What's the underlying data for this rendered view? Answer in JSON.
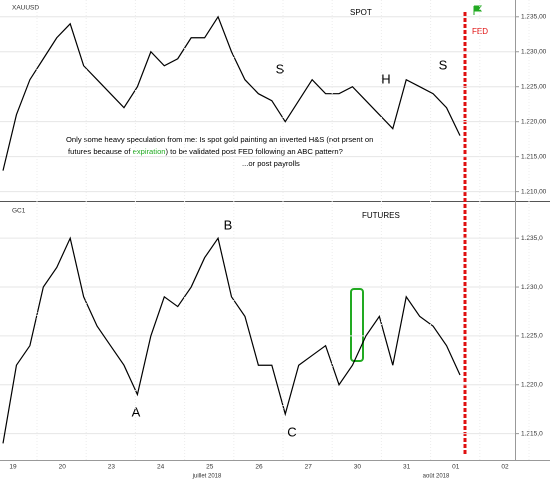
{
  "chart_data": [
    {
      "type": "line",
      "symbol": "XAUUSD",
      "title": "SPOT",
      "color": "#000000",
      "ylim": [
        1208.8,
        1237.4
      ],
      "yticks": [
        {
          "value": 1210,
          "label": "1.210,00"
        },
        {
          "value": 1215,
          "label": "1.215,00"
        },
        {
          "value": 1220,
          "label": "1.220,00"
        },
        {
          "value": 1225,
          "label": "1.225,00"
        },
        {
          "value": 1230,
          "label": "1.230,00"
        },
        {
          "value": 1235,
          "label": "1.235,00"
        }
      ],
      "values": [
        1213,
        1221,
        1226,
        1229,
        1232,
        1234,
        1228,
        1226,
        1224,
        1222,
        1225,
        1230,
        1228,
        1229,
        1232,
        1232,
        1235,
        1230,
        1226,
        1224,
        1223,
        1220,
        1223,
        1226,
        1224,
        1224,
        1225,
        1223,
        1221,
        1219,
        1226,
        1225,
        1224,
        1222,
        1218
      ],
      "annotations": [
        "S",
        "H",
        "S",
        "FED"
      ],
      "note": [
        "Only some heavy speculation from me: Is spot gold painting an inverted H&S (not prsent on",
        "futures because of ",
        "expiration",
        ") to be validated post FED following an ABC pattern?",
        "...or post payrolls"
      ]
    },
    {
      "type": "line",
      "symbol": "GC1",
      "title": "FUTURES",
      "color": "#000000",
      "ylim": [
        1212.3,
        1238.6
      ],
      "yticks": [
        {
          "value": 1215,
          "label": "1.215,0"
        },
        {
          "value": 1220,
          "label": "1.220,0"
        },
        {
          "value": 1225,
          "label": "1.225,0"
        },
        {
          "value": 1230,
          "label": "1.230,0"
        },
        {
          "value": 1235,
          "label": "1.235,0"
        }
      ],
      "values": [
        1214,
        1222,
        1224,
        1230,
        1232,
        1235,
        1229,
        1226,
        1224,
        1222,
        1219,
        1225,
        1229,
        1228,
        1230,
        1233,
        1235,
        1229,
        1227,
        1222,
        1222,
        1217,
        1222,
        1223,
        1224,
        1220,
        1222,
        1225,
        1227,
        1222,
        1229,
        1227,
        1226,
        1224,
        1221
      ],
      "annotations": [
        "B",
        "A",
        "C"
      ],
      "x_tick_labels": [
        "19",
        "20",
        "23",
        "24",
        "25",
        "26",
        "27",
        "30",
        "31",
        "01",
        "02"
      ],
      "month_labels": [
        "juillet 2018",
        "août 2018"
      ]
    }
  ]
}
